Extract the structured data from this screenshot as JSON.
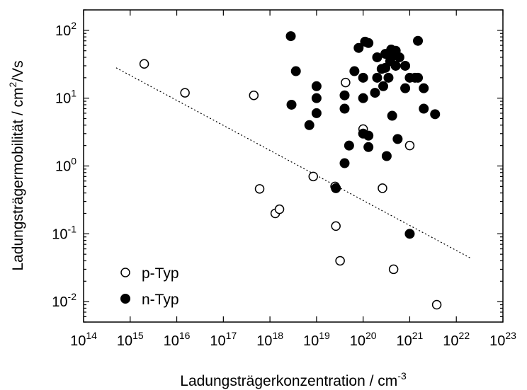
{
  "chart_data": {
    "type": "scatter",
    "title": "",
    "xlabel": "Ladungsträgerkonzentration / cm",
    "xlabel_sup": "-3",
    "ylabel": "Ladungsträgermobilität / cm",
    "ylabel_sup": "2",
    "ylabel_tail": "/Vs",
    "x_scale": "log",
    "y_scale": "log",
    "xlim": [
      100000000000000.0,
      1e+23
    ],
    "ylim": [
      0.005,
      200
    ],
    "x_ticks": [
      {
        "base": "10",
        "exp": "14",
        "value": 100000000000000.0
      },
      {
        "base": "10",
        "exp": "15",
        "value": 1000000000000000.0
      },
      {
        "base": "10",
        "exp": "16",
        "value": 1e+16
      },
      {
        "base": "10",
        "exp": "17",
        "value": 1e+17
      },
      {
        "base": "10",
        "exp": "18",
        "value": 1e+18
      },
      {
        "base": "10",
        "exp": "19",
        "value": 1e+19
      },
      {
        "base": "10",
        "exp": "20",
        "value": 1e+20
      },
      {
        "base": "10",
        "exp": "21",
        "value": 1e+21
      },
      {
        "base": "10",
        "exp": "22",
        "value": 1e+22
      },
      {
        "base": "10",
        "exp": "23",
        "value": 1e+23
      }
    ],
    "y_ticks": [
      {
        "base": "10",
        "exp": "2",
        "value": 100
      },
      {
        "base": "10",
        "exp": "1",
        "value": 10
      },
      {
        "base": "10",
        "exp": "0",
        "value": 1
      },
      {
        "base": "10",
        "exp": "-1",
        "value": 0.1
      },
      {
        "base": "10",
        "exp": "-2",
        "value": 0.01
      }
    ],
    "grid": false,
    "legend_position": "bottom-left",
    "series": [
      {
        "name": "p-Typ",
        "marker": "open-circle",
        "points": [
          [
            2000000000000000.0,
            32
          ],
          [
            1.5e+16,
            12
          ],
          [
            4.5e+17,
            11
          ],
          [
            6e+17,
            0.46
          ],
          [
            1.3e+18,
            0.2
          ],
          [
            1.6e+18,
            0.23
          ],
          [
            8.5e+18,
            0.7
          ],
          [
            2.5e+19,
            0.5
          ],
          [
            2.6e+19,
            0.13
          ],
          [
            3.2e+19,
            0.04
          ],
          [
            4.2e+19,
            17
          ],
          [
            1e+20,
            3.5
          ],
          [
            2.6e+20,
            0.47
          ],
          [
            4.5e+20,
            0.03
          ],
          [
            1e+21,
            2
          ],
          [
            3.8e+21,
            0.009
          ]
        ]
      },
      {
        "name": "n-Typ",
        "marker": "filled-circle",
        "points": [
          [
            2.8e+18,
            82
          ],
          [
            2.9e+18,
            8
          ],
          [
            3.6e+18,
            25
          ],
          [
            7e+18,
            4
          ],
          [
            1e+19,
            15
          ],
          [
            1e+19,
            10
          ],
          [
            1e+19,
            6
          ],
          [
            2.6e+19,
            0.47
          ],
          [
            4e+19,
            11
          ],
          [
            4e+19,
            7
          ],
          [
            4e+19,
            1.1
          ],
          [
            5e+19,
            2
          ],
          [
            6.5e+19,
            25
          ],
          [
            8e+19,
            55
          ],
          [
            1e+20,
            20
          ],
          [
            1e+20,
            10
          ],
          [
            1e+20,
            3
          ],
          [
            1.1e+20,
            68
          ],
          [
            1.3e+20,
            65
          ],
          [
            1.3e+20,
            2.8
          ],
          [
            1.3e+20,
            1.9
          ],
          [
            1.8e+20,
            12
          ],
          [
            2e+20,
            40
          ],
          [
            2e+20,
            20
          ],
          [
            2.5e+20,
            27
          ],
          [
            2.7e+20,
            15
          ],
          [
            3e+20,
            45
          ],
          [
            3e+20,
            28
          ],
          [
            3.2e+20,
            1.4
          ],
          [
            3.5e+20,
            20
          ],
          [
            3.8e+20,
            35
          ],
          [
            4e+20,
            52
          ],
          [
            4.2e+20,
            5.5
          ],
          [
            4.5e+20,
            42
          ],
          [
            5e+20,
            50
          ],
          [
            5e+20,
            30
          ],
          [
            5.5e+20,
            2.5
          ],
          [
            6e+20,
            40
          ],
          [
            8e+20,
            30
          ],
          [
            8e+20,
            14
          ],
          [
            1e+21,
            20
          ],
          [
            1e+21,
            0.1
          ],
          [
            1.3e+21,
            20
          ],
          [
            1.5e+21,
            70
          ],
          [
            1.5e+21,
            20
          ],
          [
            2e+21,
            7
          ],
          [
            2e+21,
            14
          ],
          [
            3.5e+21,
            5.8
          ]
        ]
      }
    ],
    "fit_line": {
      "style": "dotted",
      "points": [
        [
          500000000000000.0,
          28
        ],
        [
          2e+22,
          0.044
        ]
      ]
    }
  }
}
